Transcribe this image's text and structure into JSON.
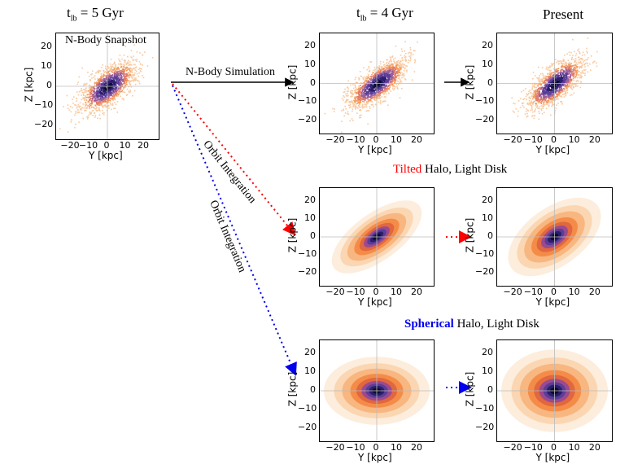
{
  "titles": {
    "col1_prefix": "t",
    "col1_sub": "lb",
    "col1_rest": "= 5 Gyr",
    "col2_prefix": "t",
    "col2_sub": "lb",
    "col2_rest": "= 4 Gyr",
    "col3": "Present"
  },
  "snapshot_label": "N-Body Snapshot",
  "arrows": {
    "nbody": "N-Body Simulation",
    "orbit1": "Orbit Integration",
    "orbit2": "Orbit Integration"
  },
  "rows": {
    "tilted_word": "Tilted",
    "tilted_rest": " Halo, Light Disk",
    "spherical_word": "Spherical",
    "spherical_rest": " Halo, Light Disk"
  },
  "axes": {
    "xlabel": "Y [kpc]",
    "ylabel": "Z [kpc]",
    "xticks": [
      "−20",
      "−10",
      "0",
      "10",
      "20"
    ],
    "yticks": [
      "20",
      "10",
      "0",
      "−10",
      "−20"
    ]
  },
  "colors": {
    "red": "#ff0000",
    "blue": "#0000ee"
  }
}
